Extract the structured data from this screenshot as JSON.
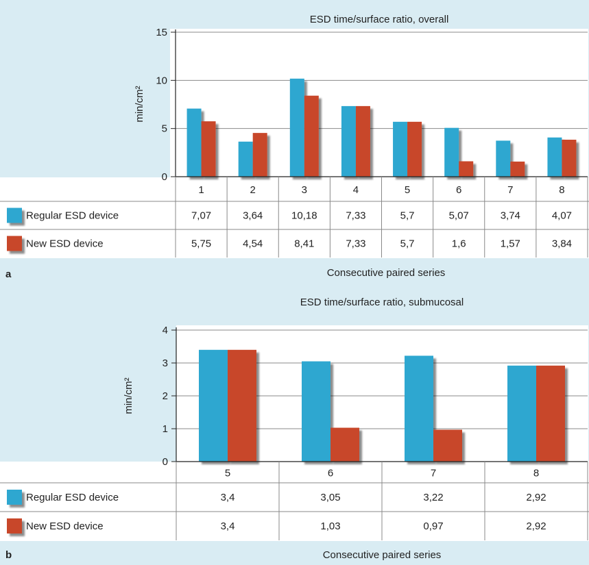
{
  "chart_data": [
    {
      "type": "bar",
      "panel_label": "a",
      "title": "ESD time/surface ratio, overall",
      "xlabel": "Consecutive paired series",
      "ylabel": "min/cm²",
      "ylim": [
        0,
        15
      ],
      "yticks": [
        "0",
        "5",
        "10",
        "15"
      ],
      "categories": [
        "1",
        "2",
        "3",
        "4",
        "5",
        "6",
        "7",
        "8"
      ],
      "series": [
        {
          "name": "Regular ESD device",
          "color": "#2ea7d0",
          "values": [
            7.07,
            3.64,
            10.18,
            7.33,
            5.7,
            5.07,
            3.74,
            4.07
          ],
          "labels": [
            "7,07",
            "3,64",
            "10,18",
            "7,33",
            "5,7",
            "5,07",
            "3,74",
            "4,07"
          ]
        },
        {
          "name": "New ESD device",
          "color": "#c8472b",
          "values": [
            5.75,
            4.54,
            8.41,
            7.33,
            5.7,
            1.6,
            1.57,
            3.84
          ],
          "labels": [
            "5,75",
            "4,54",
            "8,41",
            "7,33",
            "5,7",
            "1,6",
            "1,57",
            "3,84"
          ]
        }
      ],
      "grid": true
    },
    {
      "type": "bar",
      "panel_label": "b",
      "title": "ESD time/surface ratio, submucosal",
      "xlabel": "Consecutive paired series",
      "ylabel": "min/cm²",
      "ylim": [
        0,
        4
      ],
      "yticks": [
        "0",
        "1",
        "2",
        "3",
        "4"
      ],
      "categories": [
        "5",
        "6",
        "7",
        "8"
      ],
      "series": [
        {
          "name": "Regular ESD device",
          "color": "#2ea7d0",
          "values": [
            3.4,
            3.05,
            3.22,
            2.92
          ],
          "labels": [
            "3,4",
            "3,05",
            "3,22",
            "2,92"
          ]
        },
        {
          "name": "New ESD device",
          "color": "#c8472b",
          "values": [
            3.4,
            1.03,
            0.97,
            2.92
          ],
          "labels": [
            "3,4",
            "1,03",
            "0,97",
            "2,92"
          ]
        }
      ],
      "grid": true
    }
  ]
}
